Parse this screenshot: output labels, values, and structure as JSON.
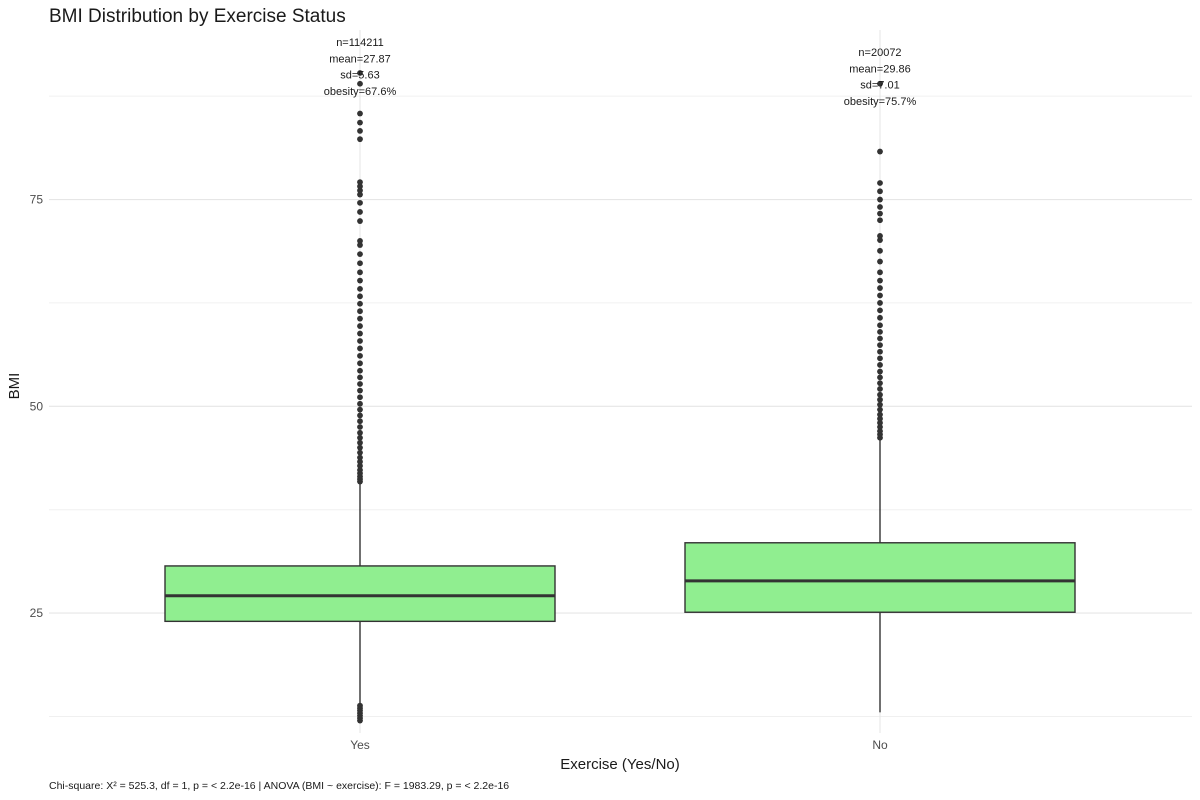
{
  "chart_data": {
    "type": "boxplot",
    "title": "BMI Distribution by Exercise Status",
    "xlabel": "Exercise (Yes/No)",
    "ylabel": "BMI",
    "caption": "Chi-square: X² = 525.3, df = 1, p = < 2.2e-16 | ANOVA (BMI ~ exercise): F = 1983.29, p = < 2.2e-16",
    "ylim": [
      10.5,
      95.5
    ],
    "yticks": [
      25,
      50,
      75
    ],
    "grid": true,
    "fill_color": "#90EE90",
    "categories": [
      "Yes",
      "No"
    ],
    "boxes": [
      {
        "category": "Yes",
        "q1": 24.0,
        "median": 27.1,
        "q3": 30.7,
        "whisker_low": 12.0,
        "whisker_high": 40.7,
        "outliers": [
          12.0,
          12.3,
          12.6,
          12.9,
          13.2,
          13.5,
          13.8,
          40.9,
          41.2,
          41.5,
          41.9,
          42.3,
          42.8,
          43.3,
          43.8,
          44.4,
          45.0,
          45.6,
          46.2,
          46.8,
          47.5,
          48.2,
          48.9,
          49.6,
          50.3,
          51.1,
          51.9,
          52.7,
          53.5,
          54.3,
          55.2,
          56.1,
          57.0,
          57.9,
          58.8,
          59.7,
          60.6,
          61.5,
          62.4,
          63.3,
          64.2,
          65.2,
          66.2,
          67.3,
          68.4,
          69.5,
          70.0,
          72.4,
          73.5,
          74.6,
          75.6,
          76.1,
          76.6,
          77.1,
          82.3,
          83.3,
          84.3,
          85.4,
          89.0,
          90.3
        ]
      },
      {
        "category": "No",
        "q1": 25.1,
        "median": 28.9,
        "q3": 33.5,
        "whisker_low": 13.0,
        "whisker_high": 46.0,
        "outliers": [
          46.2,
          46.6,
          47.0,
          47.5,
          48.0,
          48.5,
          49.0,
          49.6,
          50.2,
          50.8,
          51.4,
          52.1,
          52.8,
          53.5,
          54.2,
          55.0,
          55.8,
          56.6,
          57.4,
          58.2,
          59.0,
          59.8,
          60.7,
          61.6,
          62.5,
          63.4,
          64.3,
          65.2,
          66.2,
          67.5,
          68.8,
          70.1,
          70.6,
          72.5,
          73.3,
          74.1,
          75.0,
          76.0,
          77.0,
          80.8,
          89.0
        ]
      }
    ],
    "annotations": [
      {
        "category": "Yes",
        "lines": [
          "n=114211",
          "mean=27.87",
          "sd=5.63",
          "obesity=67.6%"
        ]
      },
      {
        "category": "No",
        "lines": [
          "n=20072",
          "mean=29.86",
          "sd=7.01",
          "obesity=75.7%"
        ]
      }
    ]
  }
}
